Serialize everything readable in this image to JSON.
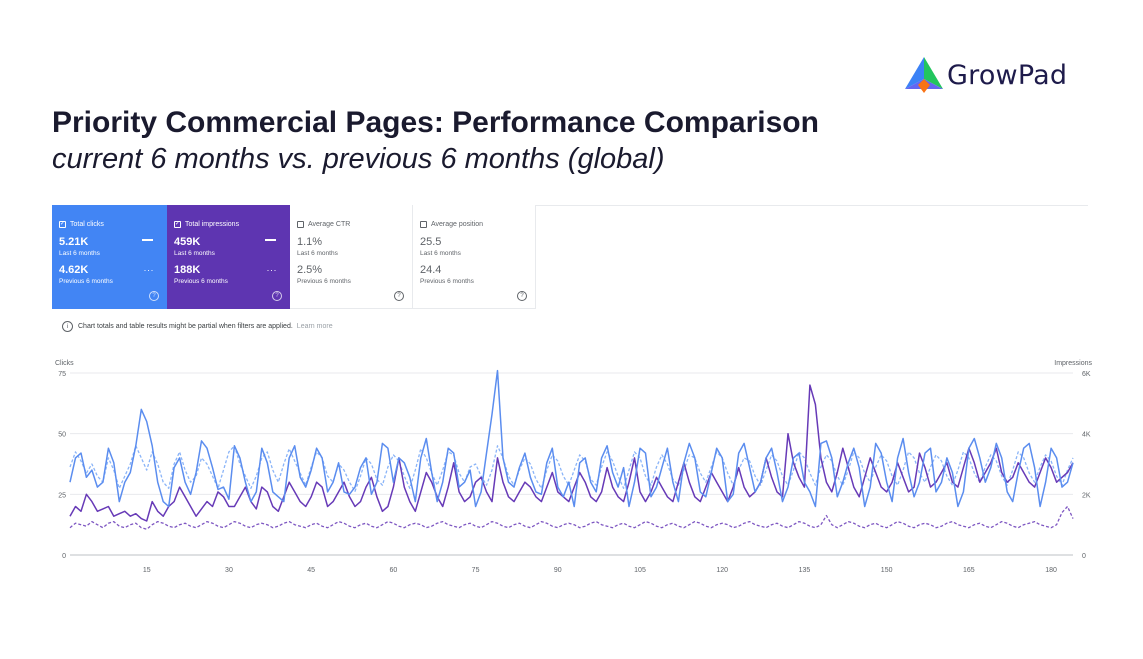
{
  "brand": {
    "name": "GrowPad",
    "logo_colors": [
      "#3b82f6",
      "#22c55e",
      "#f97316",
      "#6366f1"
    ]
  },
  "header": {
    "title": "Priority Commercial Pages: Performance Comparison",
    "subtitle": "current 6 months vs. previous 6 months (global)"
  },
  "metrics": [
    {
      "label": "Total clicks",
      "checked": true,
      "current": "5.21K",
      "current_label": "Last 6 months",
      "previous": "4.62K",
      "previous_label": "Previous 6 months",
      "color": "#4285f4"
    },
    {
      "label": "Total impressions",
      "checked": true,
      "current": "459K",
      "current_label": "Last 6 months",
      "previous": "188K",
      "previous_label": "Previous 6 months",
      "color": "#5e35b1"
    },
    {
      "label": "Average CTR",
      "checked": false,
      "current": "1.1%",
      "current_label": "Last 6 months",
      "previous": "2.5%",
      "previous_label": "Previous 6 months"
    },
    {
      "label": "Average position",
      "checked": false,
      "current": "25.5",
      "current_label": "Last 6 months",
      "previous": "24.4",
      "previous_label": "Previous 6 months"
    }
  ],
  "notice": {
    "text": "Chart totals and table results might be partial when filters are applied.",
    "link": "Learn more"
  },
  "chart_data": {
    "type": "line",
    "left_axis": {
      "label": "Clicks",
      "ticks": [
        "75",
        "50",
        "25",
        "0"
      ],
      "range": [
        0,
        75
      ]
    },
    "right_axis": {
      "label": "Impressions",
      "ticks": [
        "6K",
        "4K",
        "2K",
        "0"
      ],
      "range": [
        0,
        6000
      ]
    },
    "x_ticks": [
      "15",
      "30",
      "45",
      "60",
      "75",
      "90",
      "105",
      "120",
      "135",
      "150",
      "165",
      "180"
    ],
    "x_range": [
      1,
      184
    ],
    "grid": true,
    "series": [
      {
        "color": "#5b8def",
        "style": "solid",
        "axis": "left",
        "values": [
          30,
          40,
          42,
          32,
          35,
          28,
          30,
          44,
          38,
          22,
          30,
          34,
          45,
          60,
          55,
          45,
          30,
          22,
          20,
          36,
          40,
          30,
          25,
          34,
          47,
          44,
          36,
          27,
          28,
          23,
          45,
          40,
          30,
          22,
          26,
          44,
          38,
          26,
          24,
          22,
          40,
          45,
          32,
          28,
          35,
          44,
          40,
          26,
          30,
          38,
          26,
          25,
          28,
          36,
          40,
          25,
          30,
          46,
          44,
          30,
          40,
          38,
          32,
          22,
          40,
          48,
          34,
          22,
          30,
          44,
          42,
          28,
          30,
          35,
          20,
          26,
          42,
          58,
          76,
          40,
          30,
          28,
          36,
          42,
          32,
          26,
          25,
          38,
          44,
          28,
          24,
          30,
          20,
          38,
          40,
          30,
          26,
          40,
          45,
          34,
          28,
          36,
          20,
          30,
          44,
          42,
          24,
          28,
          36,
          44,
          30,
          22,
          38,
          46,
          40,
          26,
          24,
          34,
          44,
          40,
          22,
          25,
          42,
          46,
          36,
          26,
          30,
          40,
          44,
          34,
          22,
          28,
          40,
          42,
          30,
          26,
          20,
          46,
          47,
          40,
          24,
          30,
          38,
          44,
          36,
          20,
          28,
          46,
          42,
          30,
          22,
          40,
          48,
          34,
          24,
          30,
          42,
          44,
          26,
          30,
          40,
          34,
          20,
          26,
          44,
          48,
          40,
          30,
          36,
          46,
          40,
          26,
          22,
          34,
          44,
          46,
          36,
          20,
          30,
          44,
          40,
          28,
          30,
          38
        ]
      },
      {
        "color": "#673ab7",
        "style": "solid",
        "axis": "left",
        "values": [
          16,
          20,
          18,
          25,
          22,
          18,
          19,
          20,
          16,
          17,
          18,
          16,
          17,
          15,
          14,
          22,
          18,
          16,
          20,
          22,
          28,
          24,
          20,
          16,
          19,
          22,
          20,
          26,
          24,
          20,
          20,
          24,
          28,
          22,
          19,
          28,
          26,
          20,
          18,
          24,
          30,
          26,
          22,
          20,
          24,
          30,
          28,
          20,
          22,
          26,
          30,
          24,
          20,
          22,
          28,
          32,
          24,
          18,
          20,
          28,
          40,
          28,
          22,
          18,
          26,
          34,
          30,
          24,
          20,
          28,
          38,
          26,
          22,
          24,
          30,
          32,
          26,
          22,
          40,
          30,
          24,
          22,
          26,
          30,
          28,
          24,
          22,
          28,
          34,
          26,
          24,
          22,
          28,
          34,
          30,
          24,
          22,
          26,
          36,
          28,
          24,
          22,
          30,
          40,
          26,
          22,
          26,
          32,
          28,
          24,
          22,
          30,
          38,
          30,
          24,
          22,
          28,
          34,
          30,
          26,
          22,
          28,
          36,
          28,
          24,
          26,
          30,
          40,
          32,
          26,
          24,
          50,
          38,
          32,
          28,
          70,
          62,
          40,
          30,
          26,
          34,
          44,
          36,
          28,
          24,
          32,
          40,
          34,
          28,
          26,
          30,
          38,
          32,
          26,
          28,
          42,
          36,
          28,
          30,
          34,
          38,
          30,
          28,
          36,
          44,
          38,
          30,
          34,
          38,
          44,
          34,
          30,
          32,
          38,
          34,
          30,
          28,
          34,
          40,
          36,
          30,
          32,
          34,
          38
        ]
      },
      {
        "color": "#8ab4f8",
        "style": "dashed",
        "axis": "right",
        "values": [
          2900,
          3400,
          3100,
          2700,
          3000,
          2600,
          2400,
          3200,
          2800,
          2200,
          2600,
          3000,
          3600,
          3200,
          2800,
          3400,
          3000,
          2400,
          2200,
          3000,
          3400,
          2800,
          2400,
          2600,
          3200,
          3000,
          2600,
          2200,
          2800,
          3400,
          3600,
          3000,
          2600,
          2200,
          2600,
          3200,
          3400,
          2800,
          2400,
          3000,
          3500,
          3100,
          2700,
          2300,
          2900,
          3400,
          3200,
          2600,
          2400,
          3000,
          2800,
          2400,
          2100,
          2600,
          3200,
          3000,
          2500,
          2300,
          2900,
          3300,
          3100,
          2600,
          2200,
          2800,
          3500,
          3200,
          2700,
          2300,
          2800,
          3400,
          3300,
          2700,
          2400,
          2900,
          3000,
          2600,
          2300,
          2800,
          3600,
          3200,
          2600,
          2300,
          2800,
          3200,
          3000,
          2500,
          2200,
          2800,
          3300,
          3100,
          2600,
          2300,
          2800,
          3300,
          3100,
          2500,
          2300,
          2900,
          3400,
          3100,
          2600,
          2200,
          2800,
          3400,
          3200,
          2600,
          2300,
          2900,
          3300,
          3000,
          2500,
          2300,
          2800,
          3300,
          3200,
          2700,
          2400,
          2900,
          3400,
          3200,
          2700,
          2300,
          2800,
          3200,
          3100,
          2600,
          2300,
          2800,
          3300,
          3100,
          2600,
          2300,
          2800,
          3400,
          3200,
          2700,
          2300,
          2900,
          3300,
          3100,
          2600,
          2300,
          2800,
          3400,
          3200,
          2700,
          2400,
          2900,
          3300,
          3100,
          2600,
          2300,
          2800,
          3400,
          3200,
          2700,
          2400,
          2900,
          3300,
          3100,
          2600,
          2300,
          2800,
          3400,
          3200,
          2700,
          2400,
          2900,
          3300,
          3100,
          2600,
          2300,
          2800,
          3400,
          3200,
          2700,
          2400,
          2900,
          3300,
          3100,
          2600,
          2300,
          2800,
          3200
        ]
      },
      {
        "color": "#7e57c2",
        "style": "dashed",
        "axis": "right",
        "values": [
          900,
          1050,
          1000,
          950,
          1100,
          1000,
          900,
          1050,
          1100,
          950,
          900,
          1000,
          1050,
          900,
          850,
          1000,
          1100,
          1050,
          950,
          900,
          1000,
          1050,
          950,
          900,
          1000,
          1100,
          1050,
          950,
          900,
          1000,
          1100,
          1050,
          950,
          900,
          1000,
          1050,
          1000,
          900,
          950,
          1050,
          1100,
          1000,
          950,
          900,
          1000,
          1050,
          950,
          900,
          1000,
          1100,
          1050,
          950,
          900,
          1000,
          1050,
          950,
          900,
          1000,
          1100,
          1050,
          950,
          900,
          1000,
          1050,
          1000,
          900,
          950,
          1050,
          1100,
          1000,
          950,
          900,
          1000,
          1050,
          950,
          900,
          1000,
          1100,
          1050,
          950,
          900,
          1000,
          1050,
          950,
          900,
          1000,
          1100,
          1050,
          950,
          900,
          1000,
          1050,
          1000,
          900,
          950,
          1050,
          1100,
          1000,
          950,
          900,
          1000,
          1050,
          950,
          900,
          1000,
          1100,
          1050,
          950,
          900,
          1000,
          1050,
          950,
          900,
          1000,
          1100,
          1050,
          950,
          900,
          1000,
          1050,
          1000,
          900,
          950,
          1050,
          1100,
          1000,
          950,
          900,
          1000,
          1050,
          950,
          900,
          1000,
          1100,
          1050,
          950,
          900,
          1000,
          1300,
          1000,
          900,
          1000,
          1100,
          1050,
          950,
          900,
          1000,
          1050,
          950,
          900,
          1000,
          1100,
          1050,
          950,
          900,
          1000,
          1050,
          1000,
          900,
          950,
          1050,
          1100,
          1000,
          950,
          900,
          1000,
          1050,
          950,
          900,
          1000,
          1100,
          1050,
          950,
          900,
          1000,
          1050,
          1100,
          1000,
          950,
          900,
          1000,
          1400,
          1600,
          1200
        ]
      }
    ]
  }
}
